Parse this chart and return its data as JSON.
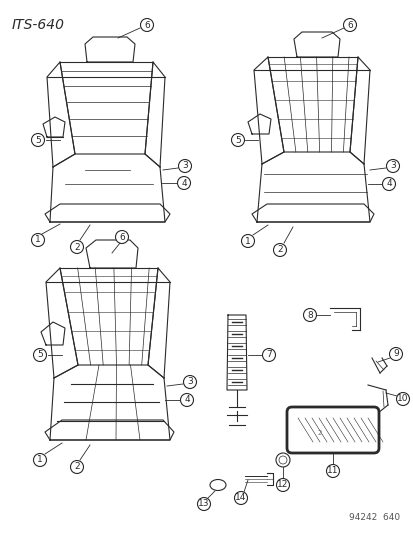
{
  "title": "ITS-640",
  "footer": "94242  640",
  "bg_color": "#ffffff",
  "line_color": "#2a2a2a",
  "title_fontsize": 10,
  "callout_fontsize": 6.5,
  "footer_fontsize": 6.5,
  "figsize": [
    4.14,
    5.33
  ],
  "dpi": 100
}
